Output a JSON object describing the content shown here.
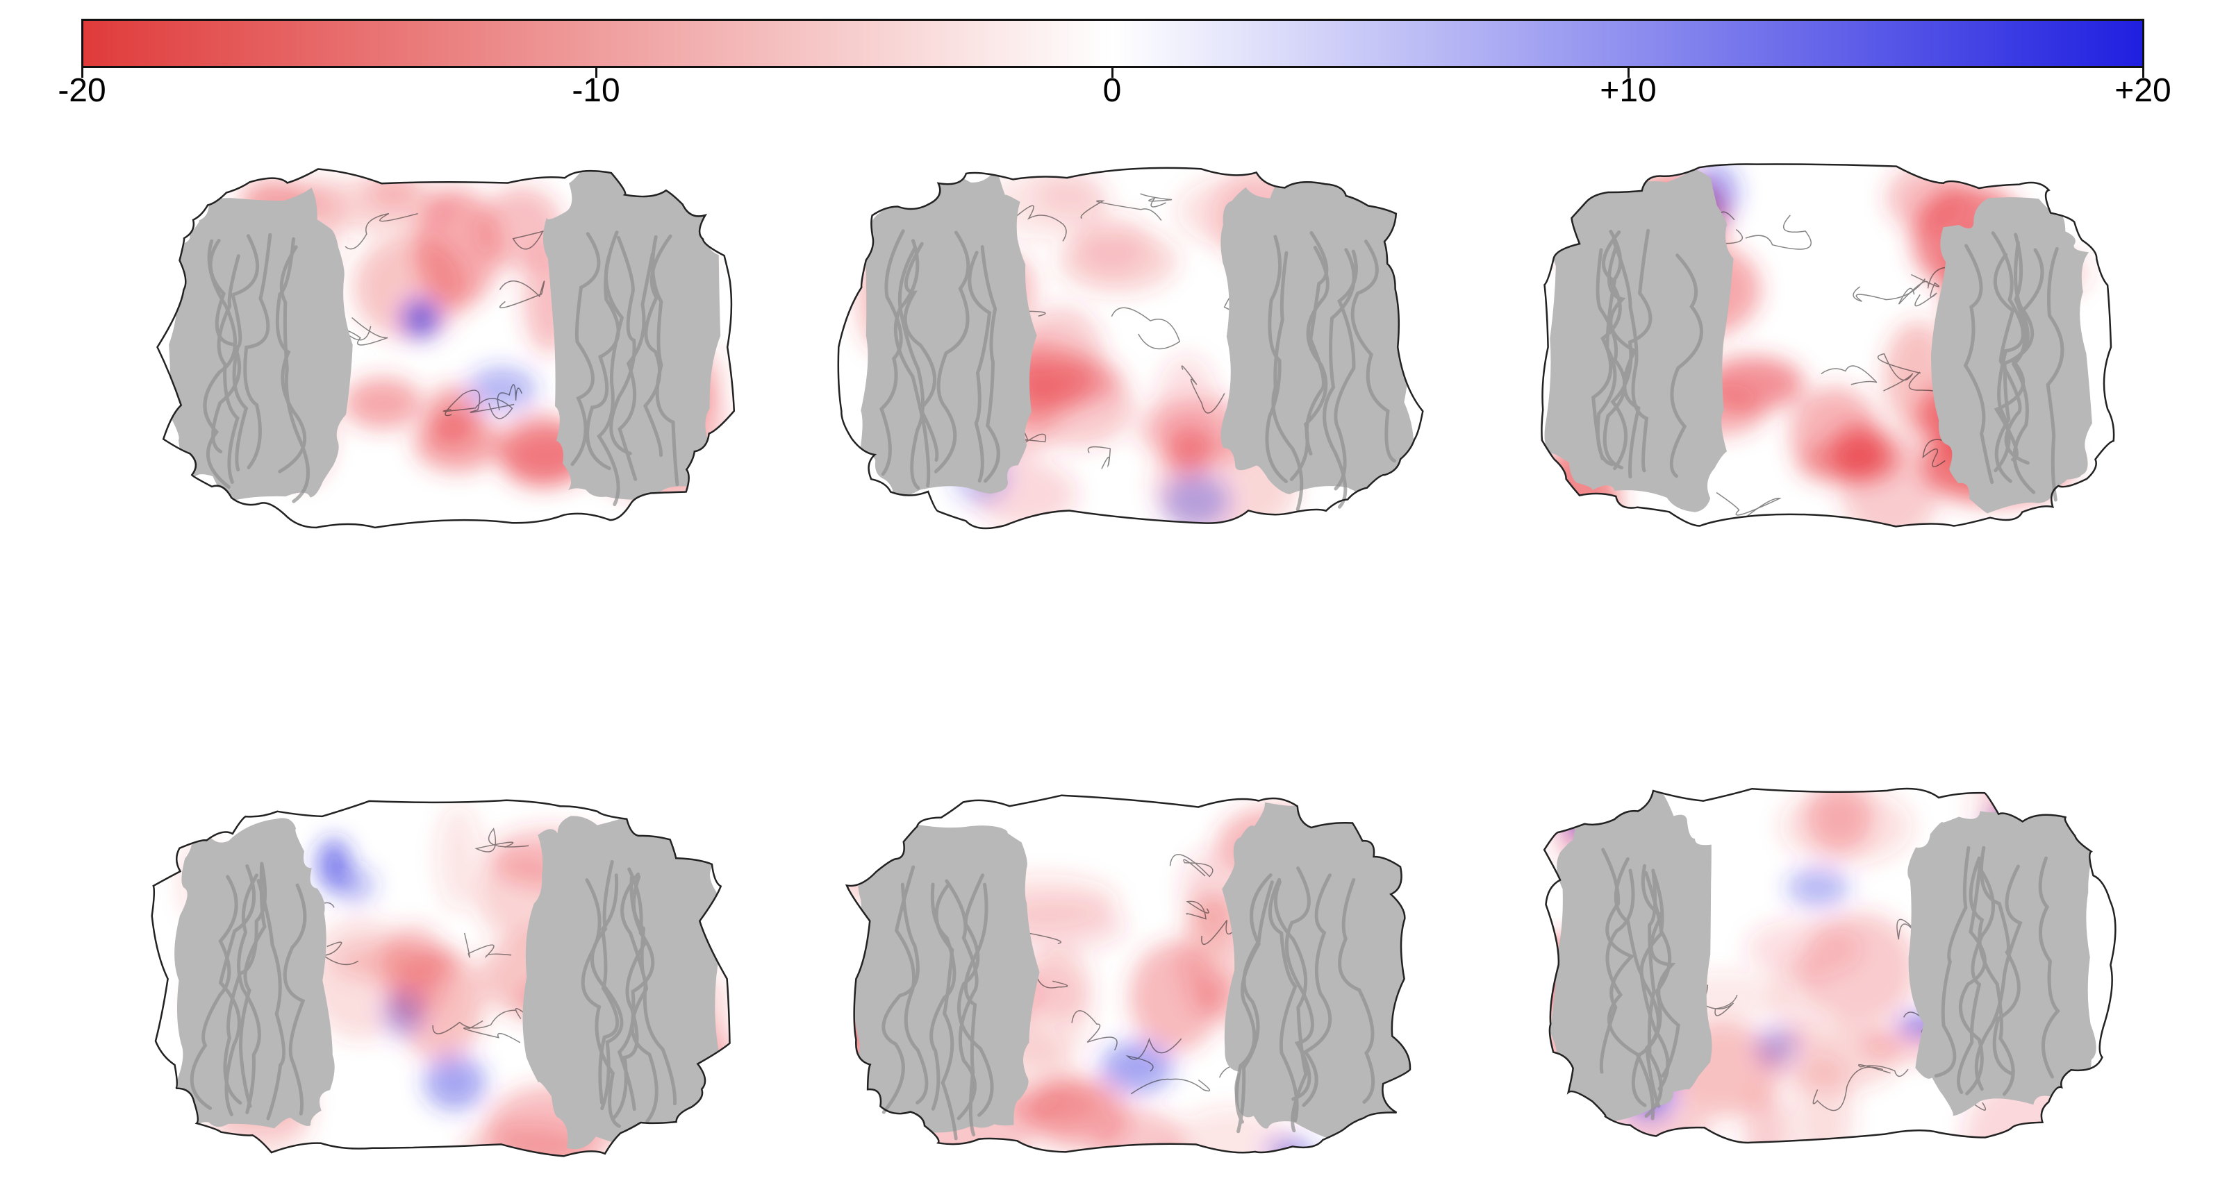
{
  "colorbar": {
    "min_label": "-20",
    "neg_label": "-10",
    "zero_label": "0",
    "pos_label": "+10",
    "max_label": "+20",
    "colors": {
      "negative": "#e03b3b",
      "neutral": "#ffffff",
      "positive": "#1f1fe0"
    }
  },
  "surface": {
    "colors": {
      "outline": "#222222",
      "cutaway": "#b8b8b8",
      "ribbon": "#8f8f8f",
      "negative": "#e8333a",
      "positive": "#2a2ae0"
    }
  },
  "panels": [
    {
      "position": "top-left"
    },
    {
      "position": "top-middle"
    },
    {
      "position": "top-right"
    },
    {
      "position": "bottom-left"
    },
    {
      "position": "bottom-middle"
    },
    {
      "position": "bottom-right"
    }
  ]
}
